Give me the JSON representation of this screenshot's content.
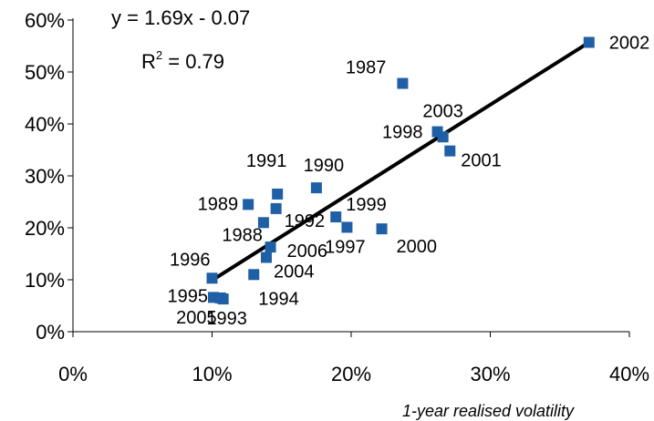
{
  "chart_data": {
    "type": "scatter",
    "title": "",
    "xlabel": "1-year realised volatility",
    "ylabel": "",
    "xlim": [
      0,
      0.4
    ],
    "ylim": [
      0,
      0.6
    ],
    "x_ticks": [
      "0%",
      "10%",
      "20%",
      "30%",
      "40%"
    ],
    "y_ticks": [
      "0%",
      "10%",
      "20%",
      "30%",
      "40%",
      "50%",
      "60%"
    ],
    "grid": false,
    "marker_color": "#1F5FA6",
    "points": [
      {
        "label": "1987",
        "x": 0.237,
        "y": 0.478
      },
      {
        "label": "1988",
        "x": 0.137,
        "y": 0.21
      },
      {
        "label": "1989",
        "x": 0.126,
        "y": 0.245
      },
      {
        "label": "1990",
        "x": 0.175,
        "y": 0.277
      },
      {
        "label": "1991",
        "x": 0.147,
        "y": 0.265
      },
      {
        "label": "1992",
        "x": 0.146,
        "y": 0.237
      },
      {
        "label": "1993",
        "x": 0.108,
        "y": 0.063
      },
      {
        "label": "1994",
        "x": 0.13,
        "y": 0.11
      },
      {
        "label": "1995",
        "x": 0.101,
        "y": 0.066
      },
      {
        "label": "1996",
        "x": 0.1,
        "y": 0.103
      },
      {
        "label": "1997",
        "x": 0.197,
        "y": 0.201
      },
      {
        "label": "1998",
        "x": 0.262,
        "y": 0.385
      },
      {
        "label": "1999",
        "x": 0.189,
        "y": 0.221
      },
      {
        "label": "2000",
        "x": 0.222,
        "y": 0.198
      },
      {
        "label": "2001",
        "x": 0.271,
        "y": 0.348
      },
      {
        "label": "2002",
        "x": 0.371,
        "y": 0.557
      },
      {
        "label": "2003",
        "x": 0.266,
        "y": 0.375
      },
      {
        "label": "2004",
        "x": 0.139,
        "y": 0.143
      },
      {
        "label": "2005",
        "x": 0.106,
        "y": 0.065
      },
      {
        "label": "2006",
        "x": 0.142,
        "y": 0.163
      }
    ],
    "trendline": {
      "slope": 1.69,
      "intercept": -0.07,
      "x_range": [
        0.1,
        0.37
      ],
      "color": "#000000"
    },
    "equation_text": "y = 1.69x - 0.07",
    "r2_prefix": "R",
    "r2_superscript": "2",
    "r2_value": " = 0.79"
  }
}
